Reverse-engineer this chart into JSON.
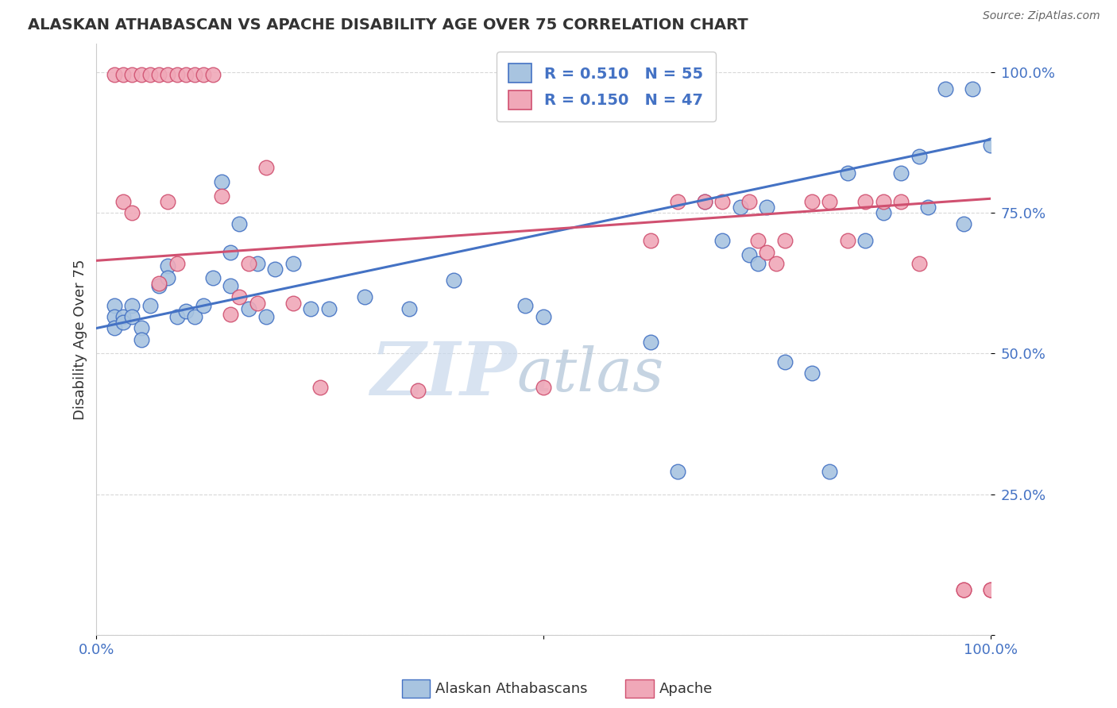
{
  "title": "ALASKAN ATHABASCAN VS APACHE DISABILITY AGE OVER 75 CORRELATION CHART",
  "source": "Source: ZipAtlas.com",
  "ylabel": "Disability Age Over 75",
  "xlim": [
    0.0,
    1.0
  ],
  "ylim": [
    0.0,
    1.05
  ],
  "yticks": [
    0.0,
    0.25,
    0.5,
    0.75,
    1.0
  ],
  "ytick_labels": [
    "",
    "25.0%",
    "50.0%",
    "75.0%",
    "100.0%"
  ],
  "legend_r1": "R = 0.510",
  "legend_n1": "N = 55",
  "legend_r2": "R = 0.150",
  "legend_n2": "N = 47",
  "label1": "Alaskan Athabascans",
  "label2": "Apache",
  "color1": "#a8c4e0",
  "color2": "#f0a8b8",
  "line_color1": "#4472c4",
  "line_color2": "#d05070",
  "watermark_zip": "ZIP",
  "watermark_atlas": "atlas",
  "background_color": "#ffffff",
  "grid_color": "#d8d8d8",
  "blue_x": [
    0.02,
    0.02,
    0.02,
    0.03,
    0.03,
    0.04,
    0.04,
    0.05,
    0.05,
    0.06,
    0.07,
    0.08,
    0.08,
    0.09,
    0.1,
    0.11,
    0.12,
    0.13,
    0.14,
    0.15,
    0.15,
    0.16,
    0.17,
    0.18,
    0.19,
    0.2,
    0.22,
    0.24,
    0.26,
    0.3,
    0.35,
    0.4,
    0.48,
    0.5,
    0.62,
    0.65,
    0.68,
    0.7,
    0.72,
    0.73,
    0.74,
    0.75,
    0.77,
    0.8,
    0.82,
    0.84,
    0.86,
    0.88,
    0.9,
    0.92,
    0.93,
    0.95,
    0.97,
    0.98,
    1.0
  ],
  "blue_y": [
    0.585,
    0.565,
    0.545,
    0.565,
    0.555,
    0.585,
    0.565,
    0.545,
    0.525,
    0.585,
    0.62,
    0.655,
    0.635,
    0.565,
    0.575,
    0.565,
    0.585,
    0.635,
    0.805,
    0.68,
    0.62,
    0.73,
    0.58,
    0.66,
    0.565,
    0.65,
    0.66,
    0.58,
    0.58,
    0.6,
    0.58,
    0.63,
    0.585,
    0.565,
    0.52,
    0.29,
    0.77,
    0.7,
    0.76,
    0.675,
    0.66,
    0.76,
    0.485,
    0.465,
    0.29,
    0.82,
    0.7,
    0.75,
    0.82,
    0.85,
    0.76,
    0.97,
    0.73,
    0.97,
    0.87
  ],
  "pink_x": [
    0.02,
    0.03,
    0.04,
    0.05,
    0.06,
    0.07,
    0.08,
    0.09,
    0.1,
    0.11,
    0.12,
    0.13,
    0.14,
    0.15,
    0.16,
    0.17,
    0.18,
    0.19,
    0.22,
    0.25,
    0.36,
    0.5,
    0.62,
    0.65,
    0.68,
    0.7,
    0.73,
    0.74,
    0.75,
    0.76,
    0.77,
    0.8,
    0.82,
    0.84,
    0.86,
    0.88,
    0.9,
    0.92,
    0.97,
    0.97,
    1.0,
    1.0,
    0.03,
    0.04,
    0.07,
    0.08,
    0.09
  ],
  "pink_y": [
    0.995,
    0.995,
    0.995,
    0.995,
    0.995,
    0.995,
    0.995,
    0.995,
    0.995,
    0.995,
    0.995,
    0.995,
    0.78,
    0.57,
    0.6,
    0.66,
    0.59,
    0.83,
    0.59,
    0.44,
    0.435,
    0.44,
    0.7,
    0.77,
    0.77,
    0.77,
    0.77,
    0.7,
    0.68,
    0.66,
    0.7,
    0.77,
    0.77,
    0.7,
    0.77,
    0.77,
    0.77,
    0.66,
    0.08,
    0.08,
    0.08,
    0.08,
    0.77,
    0.75,
    0.625,
    0.77,
    0.66
  ]
}
